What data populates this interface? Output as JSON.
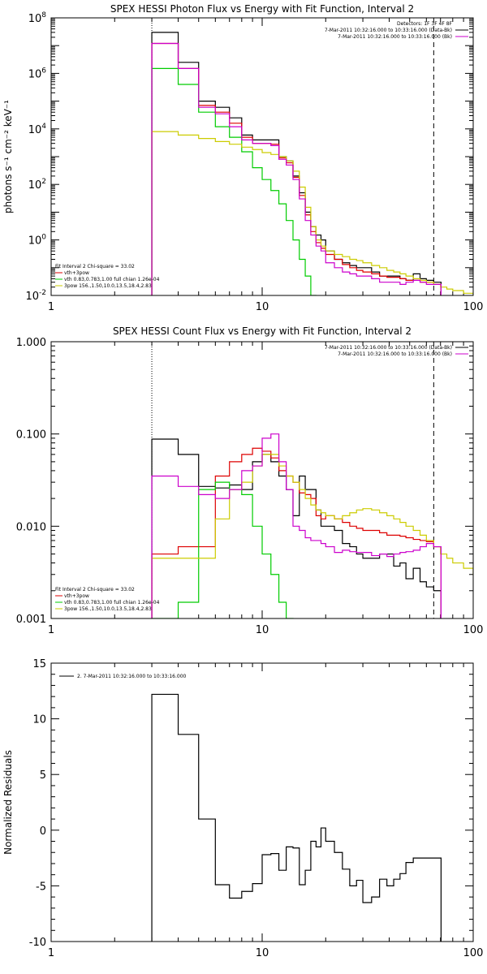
{
  "chart_data": [
    {
      "type": "line",
      "title": "SPEX HESSI Photon Flux vs Energy with Fit Function, Interval 2",
      "ylabel": "photons s⁻¹ cm⁻² keV⁻¹",
      "xlabel": "",
      "xscale": "log",
      "yscale": "log",
      "xlim": [
        1,
        100
      ],
      "ylim": [
        0.01,
        100000000
      ],
      "x_ticks": [
        {
          "value": 1,
          "label": "1"
        },
        {
          "value": 10,
          "label": "10"
        },
        {
          "value": 100,
          "label": "100"
        }
      ],
      "y_ticks": [
        {
          "value": 0.01,
          "base": "10",
          "exp": "-2"
        },
        {
          "value": 1,
          "base": "10",
          "exp": "0"
        },
        {
          "value": 100,
          "base": "10",
          "exp": "2"
        },
        {
          "value": 10000,
          "base": "10",
          "exp": "4"
        },
        {
          "value": 1000000,
          "base": "10",
          "exp": "6"
        },
        {
          "value": 100000000,
          "base": "10",
          "exp": "8"
        }
      ],
      "vlines": [
        {
          "x": 3.0,
          "style": "dotted",
          "color": "#000000"
        },
        {
          "x": 65,
          "style": "dashed",
          "color": "#000000"
        }
      ],
      "legend_top": [
        {
          "text": "Detectors: 1F 3F 4F 8F",
          "color": ""
        },
        {
          "text": "7-Mar-2011 10:32:16.000 to 10:33:16.000 (Data-Bk)",
          "color": "#000000"
        },
        {
          "text": "7-Mar-2011 10:32:16.000 to 10:33:16.000 (Bk)",
          "color": "#cc00cc"
        }
      ],
      "legend_bottom": [
        {
          "text": "Fit Interval 2    Chi-square = 33.02",
          "color": ""
        },
        {
          "text": "vth+3pow",
          "color": "#dd0000"
        },
        {
          "text": "vth 0.83,0.783,1.00  full chian 1.26e-04",
          "color": "#00cc00"
        },
        {
          "text": "3pow 156.,1.50,10.0,13.5,18.4,2.83",
          "color": "#cccc00"
        }
      ],
      "series": [
        {
          "color": "#000000",
          "x": [
            3,
            4,
            5,
            6,
            7,
            8,
            9,
            10,
            11,
            12,
            13,
            14,
            15,
            16,
            17,
            18,
            19,
            20,
            22,
            24,
            26,
            28,
            30,
            33,
            36,
            39,
            42,
            45,
            48,
            52,
            56,
            60,
            65
          ],
          "values": [
            30000000,
            2500000,
            100000,
            60000,
            25000,
            6000,
            4000,
            4000,
            4000,
            1000,
            700,
            200,
            50,
            10,
            3,
            1.5,
            1,
            0.4,
            0.2,
            0.15,
            0.12,
            0.1,
            0.1,
            0.07,
            0.05,
            0.05,
            0.05,
            0.04,
            0.035,
            0.06,
            0.04,
            0.035,
            0.03
          ]
        },
        {
          "color": "#dd0000",
          "x": [
            3,
            4,
            5,
            6,
            7,
            8,
            9,
            10,
            11,
            12,
            13,
            14,
            15,
            16,
            17,
            18,
            19,
            20,
            22,
            24,
            26,
            28,
            30,
            33,
            36,
            39,
            42,
            45,
            48,
            52,
            56,
            60,
            65
          ],
          "values": [
            12000000,
            1500000,
            70000,
            40000,
            16000,
            5000,
            3000,
            3000,
            2800,
            900,
            600,
            180,
            40,
            8,
            2,
            0.8,
            0.5,
            0.3,
            0.2,
            0.13,
            0.1,
            0.08,
            0.07,
            0.06,
            0.05,
            0.045,
            0.045,
            0.04,
            0.035,
            0.035,
            0.03,
            0.03,
            0.025
          ]
        },
        {
          "color": "#00cc00",
          "x": [
            3,
            4,
            5,
            6,
            7,
            8,
            9,
            10,
            11,
            12,
            13,
            14,
            15,
            16,
            17
          ],
          "values": [
            1500000,
            400000,
            40000,
            12000,
            5000,
            1500,
            400,
            150,
            60,
            20,
            5,
            1,
            0.2,
            0.05,
            0.01
          ]
        },
        {
          "color": "#cccc00",
          "x": [
            3,
            4,
            5,
            6,
            7,
            8,
            9,
            10,
            11,
            12,
            13,
            14,
            15,
            16,
            17,
            18,
            19,
            20,
            22,
            24,
            26,
            28,
            30,
            33,
            36,
            39,
            42,
            45,
            48,
            52,
            56,
            60,
            65,
            70,
            75,
            80,
            90,
            100
          ],
          "values": [
            8000,
            6000,
            4500,
            3500,
            2800,
            2200,
            1800,
            1400,
            1200,
            1000,
            700,
            300,
            80,
            15,
            3,
            1,
            0.6,
            0.4,
            0.3,
            0.25,
            0.2,
            0.18,
            0.15,
            0.12,
            0.1,
            0.08,
            0.07,
            0.06,
            0.05,
            0.04,
            0.035,
            0.03,
            0.025,
            0.02,
            0.017,
            0.015,
            0.012,
            0.01
          ]
        },
        {
          "color": "#cc00cc",
          "x": [
            3,
            4,
            5,
            6,
            7,
            8,
            9,
            10,
            11,
            12,
            13,
            14,
            15,
            16,
            17,
            18,
            19,
            20,
            22,
            24,
            26,
            28,
            30,
            33,
            36,
            39,
            42,
            45,
            48,
            52,
            56,
            60,
            65
          ],
          "values": [
            12000000,
            1500000,
            60000,
            35000,
            12000,
            4000,
            3000,
            3000,
            2500,
            800,
            500,
            150,
            30,
            5,
            1.5,
            0.6,
            0.4,
            0.15,
            0.1,
            0.07,
            0.06,
            0.05,
            0.05,
            0.04,
            0.03,
            0.03,
            0.03,
            0.025,
            0.03,
            0.035,
            0.03,
            0.025,
            0.025
          ]
        }
      ]
    },
    {
      "type": "line",
      "title": "SPEX HESSI Count Flux vs Energy with Fit Function, Interval 2",
      "ylabel": "",
      "xlabel": "",
      "xscale": "log",
      "yscale": "log",
      "xlim": [
        1,
        100
      ],
      "ylim": [
        0.001,
        1
      ],
      "x_ticks": [
        {
          "value": 1,
          "label": "1"
        },
        {
          "value": 10,
          "label": "10"
        },
        {
          "value": 100,
          "label": "100"
        }
      ],
      "y_ticks": [
        {
          "value": 0.001,
          "label": "0.001"
        },
        {
          "value": 0.01,
          "label": "0.010"
        },
        {
          "value": 0.1,
          "label": "0.100"
        },
        {
          "value": 1,
          "label": "1.000"
        }
      ],
      "vlines": [
        {
          "x": 3.0,
          "style": "dotted",
          "color": "#000000"
        },
        {
          "x": 65,
          "style": "dashed",
          "color": "#000000"
        }
      ],
      "legend_top": [
        {
          "text": "7-Mar-2011 10:32:16.000 to 10:33:16.000 (Data-Bk)",
          "color": "#000000"
        },
        {
          "text": "7-Mar-2011 10:32:16.000 to 10:33:16.000 (Bk)",
          "color": "#cc00cc"
        }
      ],
      "legend_bottom": [
        {
          "text": "Fit Interval 2    Chi-square = 33.02",
          "color": ""
        },
        {
          "text": "vth+3pow",
          "color": "#dd0000"
        },
        {
          "text": "vth 0.83,0.783,1.00  full chian 1.26e-04",
          "color": "#00cc00"
        },
        {
          "text": "3pow 156.,1.50,10.0,13.5,18.4,2.83",
          "color": "#cccc00"
        }
      ],
      "series": [
        {
          "color": "#000000",
          "x": [
            3,
            4,
            5,
            6,
            7,
            8,
            9,
            10,
            11,
            12,
            13,
            14,
            15,
            16,
            17,
            18,
            19,
            20,
            22,
            24,
            26,
            28,
            30,
            33,
            36,
            39,
            42,
            45,
            48,
            52,
            56,
            60,
            65
          ],
          "values": [
            0.088,
            0.06,
            0.027,
            0.026,
            0.028,
            0.025,
            0.05,
            0.06,
            0.05,
            0.035,
            0.025,
            0.013,
            0.035,
            0.025,
            0.025,
            0.015,
            0.01,
            0.01,
            0.009,
            0.0065,
            0.006,
            0.005,
            0.0045,
            0.0045,
            0.005,
            0.005,
            0.0037,
            0.004,
            0.0027,
            0.0035,
            0.0025,
            0.0022,
            0.002
          ]
        },
        {
          "color": "#dd0000",
          "x": [
            3,
            4,
            5,
            6,
            7,
            8,
            9,
            10,
            11,
            12,
            13,
            14,
            15,
            16,
            17,
            18,
            19,
            20,
            22,
            24,
            26,
            28,
            30,
            33,
            36,
            39,
            42,
            45,
            48,
            52,
            56,
            60,
            65
          ],
          "values": [
            0.005,
            0.006,
            0.006,
            0.035,
            0.05,
            0.06,
            0.07,
            0.065,
            0.055,
            0.04,
            0.035,
            0.03,
            0.023,
            0.022,
            0.02,
            0.013,
            0.012,
            0.013,
            0.012,
            0.011,
            0.01,
            0.0095,
            0.009,
            0.009,
            0.0085,
            0.008,
            0.008,
            0.0078,
            0.0075,
            0.0072,
            0.007,
            0.0068,
            0.006
          ]
        },
        {
          "color": "#00cc00",
          "x": [
            3,
            4,
            5,
            6,
            7,
            8,
            9,
            10,
            11,
            12,
            13
          ],
          "values": [
            0.001,
            0.0015,
            0.025,
            0.03,
            0.025,
            0.022,
            0.01,
            0.005,
            0.003,
            0.0015,
            0.001
          ]
        },
        {
          "color": "#cccc00",
          "x": [
            3,
            4,
            5,
            6,
            7,
            8,
            9,
            10,
            11,
            12,
            13,
            14,
            15,
            16,
            17,
            18,
            19,
            20,
            22,
            24,
            26,
            28,
            30,
            33,
            36,
            39,
            42,
            45,
            48,
            52,
            56,
            60,
            65,
            70,
            75,
            80,
            90,
            100
          ],
          "values": [
            0.0045,
            0.0045,
            0.0045,
            0.012,
            0.025,
            0.03,
            0.045,
            0.06,
            0.06,
            0.045,
            0.035,
            0.03,
            0.025,
            0.02,
            0.017,
            0.015,
            0.014,
            0.013,
            0.012,
            0.013,
            0.014,
            0.015,
            0.0155,
            0.015,
            0.014,
            0.013,
            0.012,
            0.011,
            0.01,
            0.009,
            0.008,
            0.007,
            0.006,
            0.005,
            0.0045,
            0.004,
            0.0035,
            0.003
          ]
        },
        {
          "color": "#cc00cc",
          "x": [
            3,
            4,
            5,
            6,
            7,
            8,
            9,
            10,
            11,
            12,
            13,
            14,
            15,
            16,
            17,
            18,
            19,
            20,
            22,
            24,
            26,
            28,
            30,
            33,
            36,
            39,
            42,
            45,
            48,
            52,
            56,
            60,
            65
          ],
          "values": [
            0.035,
            0.027,
            0.022,
            0.02,
            0.025,
            0.04,
            0.045,
            0.09,
            0.1,
            0.05,
            0.025,
            0.01,
            0.009,
            0.0075,
            0.007,
            0.007,
            0.0065,
            0.006,
            0.0052,
            0.0055,
            0.0053,
            0.0052,
            0.0052,
            0.0048,
            0.005,
            0.0047,
            0.005,
            0.0052,
            0.0053,
            0.0055,
            0.006,
            0.0065,
            0.006
          ]
        }
      ]
    },
    {
      "type": "line",
      "title": "",
      "ylabel": "Normalized Residuals",
      "xlabel": "",
      "xscale": "log",
      "yscale": "linear",
      "xlim": [
        1,
        100
      ],
      "ylim": [
        -10,
        15
      ],
      "x_ticks": [
        {
          "value": 1,
          "label": "1"
        },
        {
          "value": 10,
          "label": "10"
        },
        {
          "value": 100,
          "label": "100"
        }
      ],
      "y_ticks": [
        {
          "value": -10,
          "label": "-10"
        },
        {
          "value": -5,
          "label": "-5"
        },
        {
          "value": 0,
          "label": "0"
        },
        {
          "value": 5,
          "label": "5"
        },
        {
          "value": 10,
          "label": "10"
        },
        {
          "value": 15,
          "label": "15"
        }
      ],
      "legend_top": [
        {
          "text": "2. 7-Mar-2011 10:32:16.000 to 10:33:16.000",
          "color": "#000000"
        }
      ],
      "series": [
        {
          "color": "#000000",
          "x": [
            3,
            4,
            5,
            6,
            7,
            8,
            9,
            10,
            11,
            12,
            13,
            14,
            15,
            16,
            17,
            18,
            19,
            20,
            22,
            24,
            26,
            28,
            30,
            33,
            36,
            39,
            42,
            45,
            48,
            52,
            56,
            60,
            65
          ],
          "values": [
            12.2,
            8.6,
            1,
            -4.9,
            -6.1,
            -5.5,
            -4.8,
            -2.2,
            -2.1,
            -3.6,
            -1.5,
            -1.6,
            -4.9,
            -3.6,
            -1,
            -1.5,
            0.2,
            -1,
            -2,
            -3.5,
            -5,
            -4.5,
            -6.5,
            -6,
            -4.4,
            -5,
            -4.4,
            -3.9,
            -2.9,
            -2.5,
            -2.5,
            -2.5,
            -2.5
          ]
        }
      ]
    }
  ]
}
